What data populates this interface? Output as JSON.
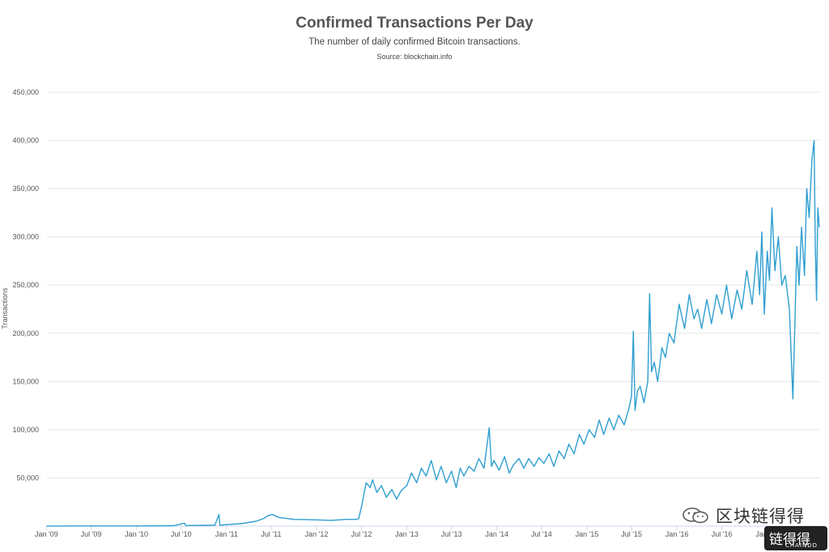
{
  "chart_data": {
    "type": "line",
    "title": "Confirmed Transactions Per Day",
    "subtitle": "The number of daily confirmed Bitcoin transactions.",
    "source": "Source: blockchain.info",
    "ylabel": "Transactions",
    "xlabel": "",
    "ylim": [
      0,
      450000
    ],
    "xlim": [
      "2009-01-03",
      "2017-07-31"
    ],
    "y_ticks": [
      50000,
      100000,
      150000,
      200000,
      250000,
      300000,
      350000,
      400000,
      450000
    ],
    "y_tick_labels": [
      "50,000",
      "100,000",
      "150,000",
      "200,000",
      "250,000",
      "300,000",
      "350,000",
      "400,000",
      "450,000"
    ],
    "x_ticks": [
      "2009-01-01",
      "2009-07-01",
      "2010-01-01",
      "2010-07-01",
      "2011-01-01",
      "2011-07-01",
      "2012-01-01",
      "2012-07-01",
      "2013-01-01",
      "2013-07-01",
      "2014-01-01",
      "2014-07-01",
      "2015-01-01",
      "2015-07-01",
      "2016-01-01",
      "2016-07-01",
      "2017-01-01"
    ],
    "x_tick_labels": [
      "Jan '09",
      "Jul '09",
      "Jan '10",
      "Jul '10",
      "Jan '11",
      "Jul '11",
      "Jan '12",
      "Jul '12",
      "Jan '13",
      "Jul '13",
      "Jan '14",
      "Jul '14",
      "Jan '15",
      "Jul '15",
      "Jan '16",
      "Jul '16",
      "Jan '17"
    ],
    "grid": true,
    "legend": "none",
    "color": "#2f9fd0",
    "series": [
      {
        "x": [
          "2009-01-03",
          "2009-07-01",
          "2010-01-01",
          "2010-06-01",
          "2010-07-15",
          "2010-07-20",
          "2010-08-01",
          "2010-11-15",
          "2010-12-01",
          "2010-12-05",
          "2010-12-10",
          "2011-01-01",
          "2011-03-01",
          "2011-05-01",
          "2011-06-01",
          "2011-06-20",
          "2011-07-05",
          "2011-08-01",
          "2011-10-01",
          "2012-01-01",
          "2012-03-01",
          "2012-05-01",
          "2012-06-10",
          "2012-06-20",
          "2012-07-01",
          "2012-07-20",
          "2012-08-05",
          "2012-08-15",
          "2012-09-01",
          "2012-09-20",
          "2012-10-10",
          "2012-11-01",
          "2012-11-20",
          "2012-12-10",
          "2013-01-01",
          "2013-01-20",
          "2013-02-10",
          "2013-03-01",
          "2013-03-20",
          "2013-04-10",
          "2013-05-01",
          "2013-05-20",
          "2013-06-10",
          "2013-07-01",
          "2013-07-20",
          "2013-08-05",
          "2013-08-20",
          "2013-09-10",
          "2013-10-01",
          "2013-10-20",
          "2013-11-10",
          "2013-12-01",
          "2013-12-10",
          "2013-12-20",
          "2014-01-10",
          "2014-02-01",
          "2014-02-20",
          "2014-03-10",
          "2014-04-01",
          "2014-04-20",
          "2014-05-10",
          "2014-06-01",
          "2014-06-20",
          "2014-07-10",
          "2014-08-01",
          "2014-08-20",
          "2014-09-10",
          "2014-10-01",
          "2014-10-20",
          "2014-11-10",
          "2014-12-01",
          "2014-12-20",
          "2015-01-10",
          "2015-02-01",
          "2015-02-20",
          "2015-03-10",
          "2015-04-01",
          "2015-04-20",
          "2015-05-10",
          "2015-06-01",
          "2015-06-20",
          "2015-07-01",
          "2015-07-08",
          "2015-07-15",
          "2015-07-25",
          "2015-08-05",
          "2015-08-20",
          "2015-09-05",
          "2015-09-12",
          "2015-09-20",
          "2015-10-01",
          "2015-10-15",
          "2015-11-01",
          "2015-11-15",
          "2015-12-01",
          "2015-12-20",
          "2016-01-10",
          "2016-02-01",
          "2016-02-20",
          "2016-03-10",
          "2016-03-25",
          "2016-04-10",
          "2016-05-01",
          "2016-05-20",
          "2016-06-10",
          "2016-07-01",
          "2016-07-20",
          "2016-08-10",
          "2016-09-01",
          "2016-09-20",
          "2016-10-10",
          "2016-11-01",
          "2016-11-20",
          "2016-12-01",
          "2016-12-10",
          "2016-12-20",
          "2017-01-01",
          "2017-01-10",
          "2017-01-20",
          "2017-02-01",
          "2017-02-15",
          "2017-03-01",
          "2017-03-15",
          "2017-04-01",
          "2017-04-15",
          "2017-05-01",
          "2017-05-10",
          "2017-05-20",
          "2017-06-01",
          "2017-06-10",
          "2017-06-20",
          "2017-07-01",
          "2017-07-10",
          "2017-07-15",
          "2017-07-20",
          "2017-07-25",
          "2017-07-31"
        ],
        "y": [
          100,
          150,
          200,
          400,
          3000,
          600,
          700,
          900,
          12000,
          1200,
          1000,
          1500,
          2500,
          5000,
          8000,
          11000,
          12000,
          9000,
          7000,
          6500,
          6000,
          7000,
          7000,
          8000,
          20000,
          45000,
          40000,
          48000,
          35000,
          42000,
          30000,
          38000,
          28000,
          37000,
          42000,
          55000,
          45000,
          60000,
          52000,
          68000,
          48000,
          62000,
          45000,
          57000,
          40000,
          60000,
          52000,
          62000,
          57000,
          70000,
          60000,
          102000,
          62000,
          68000,
          58000,
          72000,
          55000,
          64000,
          70000,
          60000,
          70000,
          62000,
          71000,
          65000,
          75000,
          62000,
          78000,
          70000,
          85000,
          75000,
          95000,
          85000,
          100000,
          92000,
          110000,
          95000,
          112000,
          100000,
          115000,
          105000,
          122000,
          135000,
          202000,
          120000,
          140000,
          145000,
          128000,
          150000,
          241000,
          160000,
          170000,
          150000,
          185000,
          175000,
          200000,
          190000,
          230000,
          205000,
          240000,
          215000,
          225000,
          205000,
          235000,
          210000,
          240000,
          220000,
          250000,
          215000,
          245000,
          225000,
          265000,
          230000,
          285000,
          240000,
          305000,
          220000,
          285000,
          255000,
          330000,
          265000,
          300000,
          250000,
          260000,
          225000,
          132000,
          290000,
          250000,
          310000,
          260000,
          350000,
          320000,
          380000,
          400000,
          290000,
          234000,
          330000,
          310000
        ]
      }
    ]
  },
  "watermark": {
    "icon": "wechat-icon",
    "text": "区块链得得",
    "logo_text": "链得得",
    "logo_en": "CHAINDD"
  }
}
